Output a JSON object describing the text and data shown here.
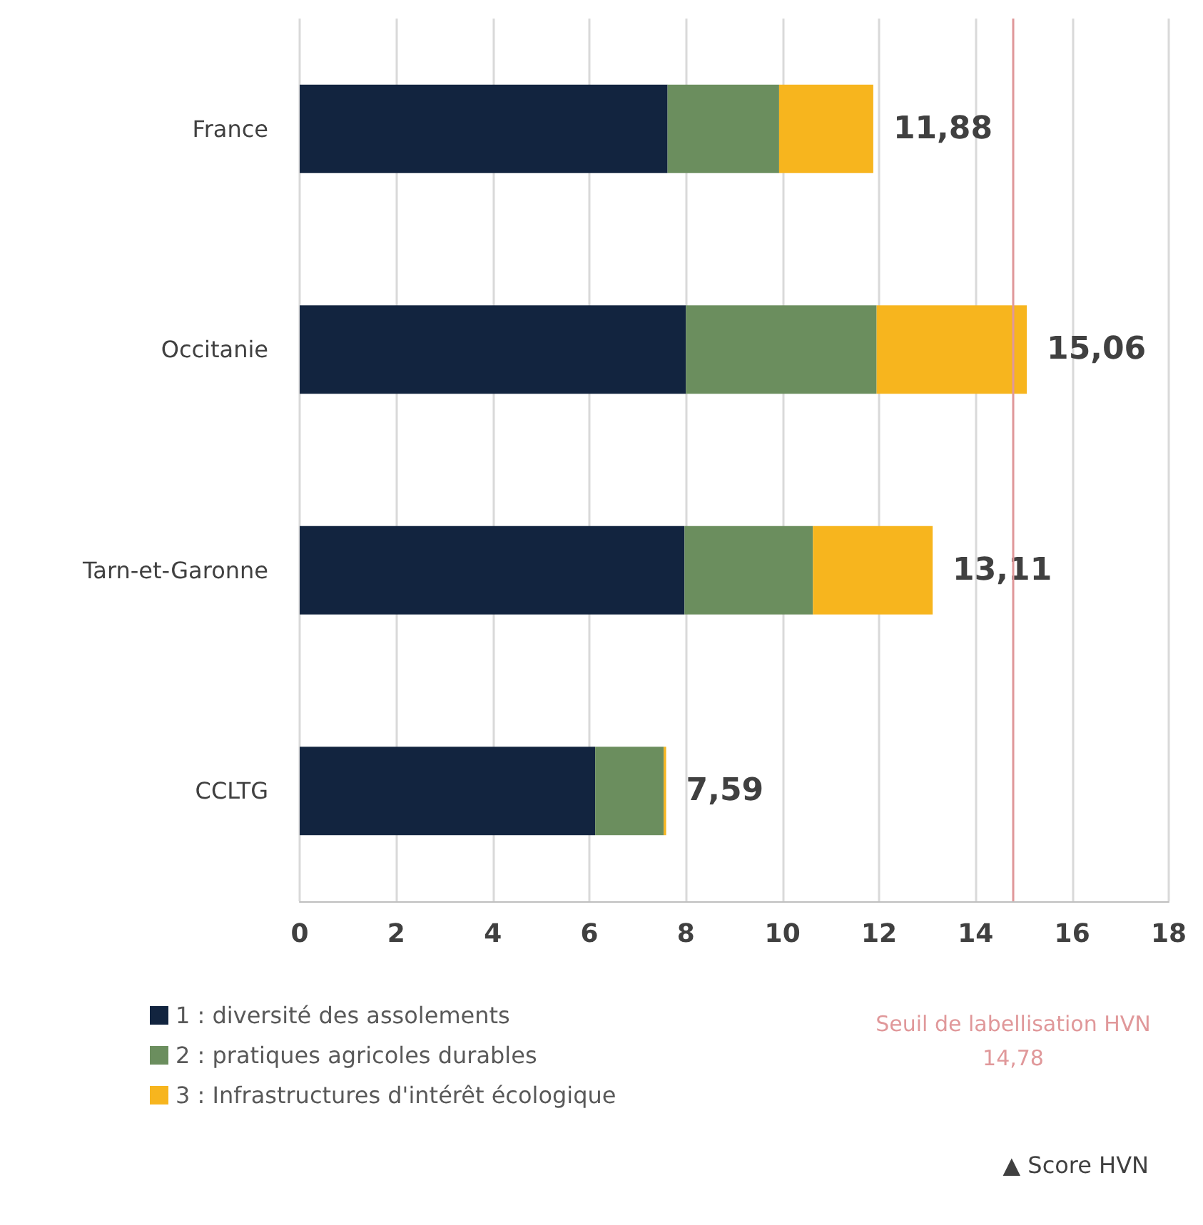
{
  "chart_data": {
    "type": "bar",
    "orientation": "horizontal",
    "stacked": true,
    "categories": [
      "France",
      "Occitanie",
      "Tarn-et-Garonne",
      "CCLTG"
    ],
    "series": [
      {
        "name": "1 : diversité des assolements",
        "color": "#12243f",
        "values": [
          7.62,
          8.0,
          7.97,
          6.12
        ]
      },
      {
        "name": "2 : pratiques agricoles durables",
        "color": "#6b8e5e",
        "values": [
          2.31,
          3.95,
          2.66,
          1.42
        ]
      },
      {
        "name": "3 : Infrastructures d'intérêt écologique",
        "color": "#f7b51e",
        "values": [
          1.95,
          3.11,
          2.48,
          0.05
        ]
      }
    ],
    "totals": [
      "11,88",
      "15,06",
      "13,11",
      "7,59"
    ],
    "xlim": [
      0,
      18
    ],
    "xticks": [
      0,
      2,
      4,
      6,
      8,
      10,
      12,
      14,
      16,
      18
    ],
    "grid": "x",
    "legend": "bottom left",
    "ref_lines": [
      {
        "axis": "x",
        "value": 14.78,
        "label": "Seuil de labellisation HVN\n14,78",
        "color": "#e0989a"
      }
    ],
    "annotations": [
      "▲ Score HVN"
    ]
  }
}
